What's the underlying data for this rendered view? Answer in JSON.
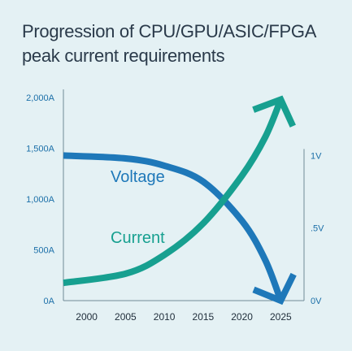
{
  "title": [
    "Progression of CPU/GPU/ASIC/FPGA",
    "peak current requirements"
  ],
  "colors": {
    "background": "#e4f1f4",
    "title": "#2a3a4a",
    "tick_labels": "#1b6fa8",
    "axis": "#6f8a96",
    "voltage": "#1e78b9",
    "current": "#17a090"
  },
  "chart_data": {
    "type": "line",
    "title": "Progression of CPU/GPU/ASIC/FPGA peak current requirements",
    "x": {
      "range": [
        1997,
        2028
      ],
      "ticks": [
        2000,
        2005,
        2010,
        2015,
        2020,
        2025
      ]
    },
    "y_left": {
      "range": [
        0,
        2000
      ],
      "ticks": [
        {
          "value": 0,
          "label": "0A"
        },
        {
          "value": 500,
          "label": "500A"
        },
        {
          "value": 1000,
          "label": "1,000A"
        },
        {
          "value": 1500,
          "label": "1,500A"
        },
        {
          "value": 2000,
          "label": "2,000A"
        }
      ]
    },
    "y_right": {
      "range": [
        0,
        1.4
      ],
      "ticks": [
        {
          "value": 0,
          "label": "0V"
        },
        {
          "value": 0.5,
          "label": ".5V"
        },
        {
          "value": 1,
          "label": "1V"
        }
      ]
    },
    "series": [
      {
        "name": "Voltage",
        "axis": "right",
        "arrow": "down",
        "points": [
          [
            1997,
            1.0
          ],
          [
            2005,
            0.98
          ],
          [
            2010,
            0.93
          ],
          [
            2015,
            0.82
          ],
          [
            2020,
            0.55
          ],
          [
            2023,
            0.28
          ],
          [
            2025,
            0.0
          ]
        ]
      },
      {
        "name": "Current",
        "axis": "left",
        "arrow": "up",
        "points": [
          [
            1997,
            175
          ],
          [
            2005,
            265
          ],
          [
            2010,
            450
          ],
          [
            2015,
            760
          ],
          [
            2020,
            1230
          ],
          [
            2023,
            1610
          ],
          [
            2025,
            1980
          ]
        ]
      }
    ]
  }
}
